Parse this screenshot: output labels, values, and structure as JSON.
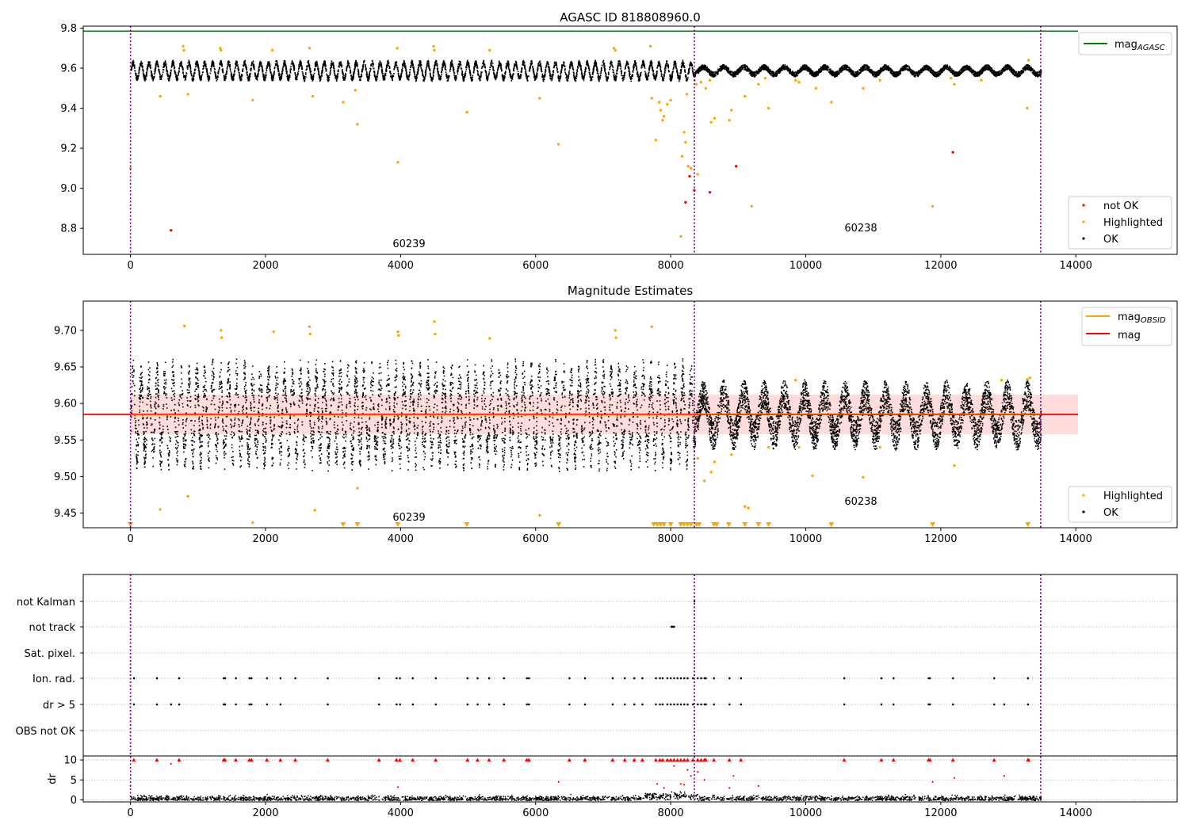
{
  "figure": {
    "title": "AGASC ID 818808960.0"
  },
  "chart_data": [
    {
      "type": "scatter",
      "title": "AGASC ID 818808960.0",
      "xlim": [
        -700,
        15500
      ],
      "ylim": [
        8.67,
        9.81
      ],
      "xticks": [
        "0",
        "2000",
        "4000",
        "6000",
        "8000",
        "10000",
        "12000",
        "14000"
      ],
      "yticks": [
        "8.8",
        "9.0",
        "9.2",
        "9.4",
        "9.6",
        "9.8"
      ],
      "obsid_boundaries": [
        0,
        8350,
        13480
      ],
      "obsid_labels": [
        "60239",
        "60238"
      ],
      "reference_line": {
        "name": "mag_AGASC",
        "value": 9.785,
        "color": "#008000"
      },
      "legend_top": [
        "mag_AGASC"
      ],
      "legend_bottom": [
        "not OK",
        "Highlighted",
        "OK"
      ],
      "series": [
        {
          "name": "OK",
          "color": "#000000",
          "description": "oscillating light curve",
          "center": 9.59,
          "amplitude_before": 0.04,
          "amplitude_after": 0.018
        },
        {
          "name": "Highlighted",
          "color": "#ffa500",
          "x": [
            0,
            440,
            780,
            790,
            850,
            1330,
            1340,
            1810,
            2100,
            2650,
            2700,
            3150,
            3330,
            3360,
            3950,
            3960,
            4490,
            4500,
            4980,
            5320,
            6060,
            6340,
            7160,
            7180,
            7700,
            7720,
            7780,
            7830,
            7850,
            7880,
            7900,
            7950,
            8000,
            8150,
            8170,
            8200,
            8220,
            8240,
            8260,
            8300,
            8380,
            8400,
            8450,
            8520,
            8580,
            8600,
            8650,
            8870,
            8900,
            9100,
            9200,
            9300,
            9400,
            9450,
            9850,
            9900,
            10150,
            10380,
            10850,
            11100,
            11880,
            12150,
            12200,
            12600,
            13280,
            13300
          ],
          "y": [
            9.1,
            9.46,
            9.71,
            9.69,
            9.47,
            9.7,
            9.69,
            9.44,
            9.69,
            9.7,
            9.46,
            9.43,
            9.49,
            9.32,
            9.7,
            9.13,
            9.71,
            9.69,
            9.38,
            9.69,
            9.45,
            9.22,
            9.7,
            9.69,
            9.71,
            9.45,
            9.24,
            9.43,
            9.39,
            9.34,
            9.36,
            9.42,
            9.44,
            8.76,
            9.16,
            9.28,
            9.23,
            9.47,
            9.11,
            9.1,
            9.52,
            9.07,
            9.53,
            9.5,
            9.54,
            9.33,
            9.35,
            9.34,
            9.39,
            9.46,
            8.91,
            9.52,
            9.55,
            9.4,
            9.54,
            9.53,
            9.5,
            9.43,
            9.5,
            9.54,
            8.91,
            9.55,
            9.52,
            9.54,
            9.4,
            9.64
          ]
        },
        {
          "name": "not OK",
          "color": "#ff0000",
          "x": [
            600,
            8220,
            8280,
            8350,
            8580,
            8970,
            12180
          ],
          "y": [
            8.79,
            8.93,
            9.06,
            8.99,
            8.98,
            9.11,
            9.18
          ]
        }
      ]
    },
    {
      "type": "scatter",
      "title": "Magnitude Estimates",
      "xlim": [
        -700,
        15500
      ],
      "ylim": [
        9.43,
        9.74
      ],
      "xticks": [
        "0",
        "2000",
        "4000",
        "6000",
        "8000",
        "10000",
        "12000",
        "14000"
      ],
      "yticks": [
        "9.45",
        "9.50",
        "9.55",
        "9.60",
        "9.65",
        "9.70"
      ],
      "obsid_boundaries": [
        0,
        8350,
        13480
      ],
      "obsid_labels": [
        "60239",
        "60238"
      ],
      "mag": {
        "value": 9.585,
        "band": [
          9.558,
          9.612
        ],
        "color": "#ff0000"
      },
      "mag_obsid": {
        "color": "#ffa500",
        "segments": [
          {
            "x": [
              0,
              8350
            ],
            "y": 9.584
          },
          {
            "x": [
              8350,
              13480
            ],
            "y": 9.586
          }
        ]
      },
      "legend_top": [
        "mag_OBSID",
        "mag"
      ],
      "legend_bottom": [
        "Highlighted",
        "OK"
      ],
      "series": [
        {
          "name": "OK",
          "color": "#000000",
          "center": 9.585,
          "amplitude_before": 0.052,
          "amplitude_after": 0.028
        },
        {
          "name": "Highlighted",
          "color": "#ffa500",
          "x": [
            440,
            800,
            850,
            1340,
            1350,
            1810,
            2120,
            2650,
            2660,
            2730,
            3360,
            3960,
            3970,
            4500,
            4510,
            5320,
            6060,
            7180,
            7190,
            7720,
            8400,
            8500,
            8600,
            8650,
            8900,
            9100,
            9150,
            9450,
            9850,
            9900,
            10100,
            10850,
            11100,
            12200,
            12900,
            13280,
            13320
          ],
          "y": [
            9.455,
            9.706,
            9.473,
            9.7,
            9.69,
            9.437,
            9.698,
            9.705,
            9.695,
            9.454,
            9.484,
            9.698,
            9.693,
            9.712,
            9.695,
            9.689,
            9.447,
            9.7,
            9.69,
            9.705,
            9.525,
            9.494,
            9.506,
            9.52,
            9.53,
            9.459,
            9.457,
            9.54,
            9.632,
            9.54,
            9.501,
            9.499,
            9.54,
            9.515,
            9.632,
            9.633,
            9.635
          ]
        },
        {
          "name": "Highlighted (below range)",
          "color": "#ffa500",
          "marker": "triangle-down",
          "x": [
            0,
            3150,
            3360,
            3960,
            4980,
            6340,
            7750,
            7800,
            7850,
            7900,
            8000,
            8150,
            8200,
            8250,
            8300,
            8380,
            8420,
            8640,
            8680,
            8860,
            9100,
            9300,
            9450,
            10380,
            11880,
            13290
          ]
        }
      ]
    },
    {
      "type": "scatter",
      "title": "",
      "xlim": [
        -700,
        15500
      ],
      "ylabel": "dr",
      "yticks": [
        "0",
        "5",
        "10"
      ],
      "categories": [
        "not Kalman",
        "not track",
        "Sat. pixel.",
        "Ion. rad.",
        "dr > 5",
        "OBS not OK"
      ],
      "obsid_boundaries": [
        0,
        8350,
        13480
      ],
      "flag_points": {
        "not Kalman": [
          8350
        ],
        "not track": [
          8010,
          8030,
          8050
        ],
        "Sat. pixel.": [],
        "Ion. rad.": [
          50,
          390,
          720,
          1380,
          1400,
          1560,
          1760,
          1790,
          2020,
          2220,
          2440,
          2920,
          3680,
          3940,
          3990,
          4180,
          4520,
          4990,
          5140,
          5310,
          5530,
          5870,
          5900,
          6500,
          6730,
          7140,
          7320,
          7460,
          7580,
          7780,
          7840,
          7880,
          7950,
          8000,
          8050,
          8100,
          8150,
          8200,
          8250,
          8330,
          8400,
          8450,
          8500,
          8520,
          8640,
          8870,
          9040,
          10570,
          11120,
          11300,
          11820,
          11840,
          12180,
          12790,
          13290
        ],
        "dr > 5": [
          50,
          390,
          600,
          720,
          1380,
          1400,
          1560,
          1760,
          1790,
          2020,
          2220,
          2920,
          3680,
          3940,
          3990,
          4180,
          4520,
          4990,
          5140,
          5310,
          5530,
          5870,
          5900,
          6500,
          6730,
          7140,
          7320,
          7460,
          7580,
          7780,
          7840,
          7880,
          7950,
          8000,
          8050,
          8100,
          8150,
          8200,
          8250,
          8330,
          8400,
          8450,
          8500,
          8520,
          8640,
          8870,
          9040,
          10570,
          11120,
          11300,
          11820,
          11840,
          12180,
          12790,
          12940,
          13290
        ],
        "OBS not OK": []
      },
      "dr_outliers": {
        "color": "#ff0000",
        "x": [
          0,
          600,
          3960,
          6340,
          7800,
          7900,
          8050,
          8150,
          8200,
          8250,
          8300,
          8400,
          8500,
          8870,
          8930,
          9300,
          11880,
          12200,
          12940
        ],
        "y": [
          3.5,
          9,
          3.2,
          4.5,
          4,
          3,
          8.5,
          4,
          3.8,
          7.5,
          6,
          7,
          5,
          3,
          6,
          3.5,
          4.5,
          5.5,
          6
        ]
      },
      "dr_capped": {
        "color": "#ff0000",
        "x": [
          50,
          390,
          720,
          1380,
          1400,
          1560,
          1760,
          1790,
          2020,
          2220,
          2440,
          2920,
          3680,
          3940,
          3990,
          4180,
          4520,
          4990,
          5140,
          5310,
          5530,
          5870,
          5900,
          6500,
          6730,
          7140,
          7320,
          7460,
          7580,
          7780,
          7840,
          7880,
          7950,
          8000,
          8050,
          8100,
          8150,
          8200,
          8250,
          8330,
          8400,
          8450,
          8500,
          8520,
          8640,
          8870,
          9040,
          10570,
          11120,
          11300,
          11820,
          11840,
          12180,
          12790,
          13290,
          13300
        ]
      }
    }
  ]
}
